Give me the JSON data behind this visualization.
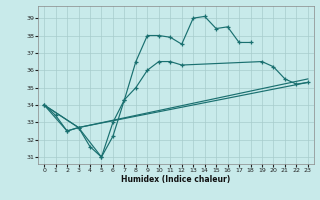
{
  "bg_color": "#c8eaea",
  "line_color": "#1a7070",
  "grid_color": "#a8cccc",
  "xlabel": "Humidex (Indice chaleur)",
  "xlim": [
    -0.5,
    23.5
  ],
  "ylim": [
    30.6,
    39.7
  ],
  "yticks": [
    31,
    32,
    33,
    34,
    35,
    36,
    37,
    38,
    39
  ],
  "xticks": [
    0,
    1,
    2,
    3,
    4,
    5,
    6,
    7,
    8,
    9,
    10,
    11,
    12,
    13,
    14,
    15,
    16,
    17,
    18,
    19,
    20,
    21,
    22,
    23
  ],
  "line1_x": [
    0,
    1,
    2,
    3,
    4,
    5,
    6,
    7,
    8,
    9,
    10,
    11,
    12,
    13,
    14,
    15,
    16,
    17,
    18
  ],
  "line1_y": [
    34.0,
    33.4,
    32.5,
    32.7,
    31.6,
    31.0,
    32.2,
    34.3,
    36.5,
    38.0,
    38.0,
    37.9,
    37.5,
    39.0,
    39.1,
    38.4,
    38.5,
    37.6,
    37.6
  ],
  "line2_x": [
    0,
    2,
    3,
    5,
    6,
    7,
    8,
    9,
    10,
    11,
    12,
    19,
    20,
    21,
    22,
    23
  ],
  "line2_y": [
    34.0,
    32.5,
    32.7,
    31.0,
    33.0,
    34.3,
    35.0,
    36.0,
    36.5,
    36.5,
    36.3,
    36.5,
    36.2,
    35.5,
    35.2,
    35.3
  ],
  "line3_x": [
    0,
    3,
    23
  ],
  "line3_y": [
    34.0,
    32.7,
    35.3
  ],
  "line4_x": [
    0,
    3,
    23
  ],
  "line4_y": [
    34.0,
    32.7,
    35.5
  ]
}
